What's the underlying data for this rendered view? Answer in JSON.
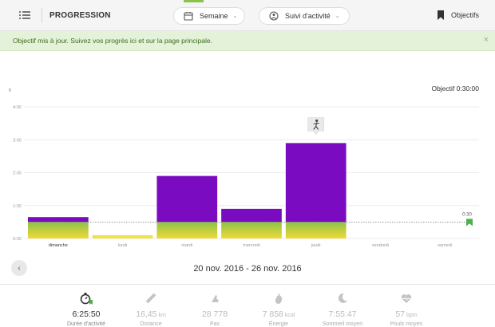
{
  "header": {
    "title": "PROGRESSION",
    "period_label": "Semaine",
    "activity_label": "Suivi d'activité",
    "goals_label": "Objectifs"
  },
  "alert": {
    "message": "Objectif mis à jour. Suivez vos progrès ici et sur la page principale.",
    "close": "×"
  },
  "chart_meta": {
    "goal_caption": "Objectif 0:30:00",
    "y_unit": "h",
    "goal_marker_label": "0:30"
  },
  "chart_data": {
    "type": "bar",
    "categories": [
      "dimanche",
      "lundi",
      "mardi",
      "mercredi",
      "jeudi",
      "vendredi",
      "samedi"
    ],
    "values": [
      0.65,
      0.1,
      1.9,
      0.9,
      2.9,
      0,
      0
    ],
    "unit": "h",
    "y_ticks": [
      "0:00",
      "1:00",
      "2:00",
      "3:00",
      "4:00"
    ],
    "ylim": [
      0,
      4
    ],
    "goal": 0.5,
    "colors": {
      "above_goal": "#7a0bc0",
      "goal_top": "#8bc34a",
      "goal_bottom": "#f2d835",
      "small": "#f0e04a"
    }
  },
  "date_nav": {
    "prev": "‹",
    "range": "20 nov. 2016 - 26 nov. 2016"
  },
  "stats": [
    {
      "value": "6:25:50",
      "unit": "",
      "label": "Durée d'activité"
    },
    {
      "value": "16,45",
      "unit": "km",
      "label": "Distance"
    },
    {
      "value": "28 778",
      "unit": "",
      "label": "Pas"
    },
    {
      "value": "7 858",
      "unit": "kcal",
      "label": "Énergie"
    },
    {
      "value": "7:55:47",
      "unit": "",
      "label": "Sommeil moyen"
    },
    {
      "value": "57",
      "unit": "bpm",
      "label": "Pouls moyen"
    }
  ],
  "icons": {
    "menu": "menu-icon",
    "calendar": "calendar-icon",
    "activity": "activity-icon",
    "bookmark": "bookmark-icon",
    "runner": "runner-icon",
    "stopwatch": "stopwatch-icon",
    "ruler": "ruler-icon",
    "shoe": "shoe-icon",
    "flame": "flame-icon",
    "moon": "moon-icon",
    "heart": "heart-icon"
  }
}
